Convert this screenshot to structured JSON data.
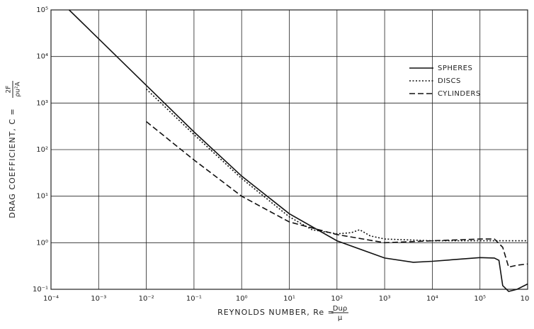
{
  "chart_data": {
    "type": "line",
    "ylabel": "DRAG COEFFICIENT, C =",
    "ylabel_fraction": {
      "numerator": "2F",
      "denominator": "ρu²A"
    },
    "xlabel": "REYNOLDS NUMBER, Re =",
    "xlabel_fraction": {
      "numerator": "Duρ",
      "denominator": "μ"
    },
    "xscale": "log",
    "yscale": "log",
    "grid": true,
    "legend": "upper right",
    "xlim": [
      0.0001,
      1000000
    ],
    "ylim": [
      0.1,
      100000
    ],
    "xticks": [
      {
        "value": 0.0001,
        "label": "10⁻⁴"
      },
      {
        "value": 0.001,
        "label": "10⁻³"
      },
      {
        "value": 0.01,
        "label": "10⁻²"
      },
      {
        "value": 0.1,
        "label": "10⁻¹"
      },
      {
        "value": 1,
        "label": "10⁰"
      },
      {
        "value": 10,
        "label": "10¹"
      },
      {
        "value": 100,
        "label": "10²"
      },
      {
        "value": 1000,
        "label": "10³"
      },
      {
        "value": 10000,
        "label": "10⁴"
      },
      {
        "value": 100000,
        "label": "10⁵"
      },
      {
        "value": 1000000,
        "label": "10"
      }
    ],
    "yticks": [
      {
        "value": 0.1,
        "label": "10⁻¹"
      },
      {
        "value": 1,
        "label": "10⁰"
      },
      {
        "value": 10,
        "label": "10¹"
      },
      {
        "value": 100,
        "label": "10²"
      },
      {
        "value": 1000,
        "label": "10³"
      },
      {
        "value": 10000,
        "label": "10⁴"
      },
      {
        "value": 100000,
        "label": "10⁵"
      }
    ],
    "series": [
      {
        "name": "SPHERES",
        "color": "#111111",
        "line_style": "solid",
        "x": [
          0.00024,
          0.001,
          0.01,
          0.1,
          1,
          10,
          100,
          1000,
          4000,
          10000,
          100000,
          200000,
          250000,
          300000,
          400000,
          600000,
          1000000
        ],
        "values": [
          100000,
          24000,
          2400,
          240,
          27,
          4.2,
          1.1,
          0.47,
          0.38,
          0.4,
          0.48,
          0.47,
          0.42,
          0.12,
          0.09,
          0.1,
          0.13
        ]
      },
      {
        "name": "DISCS",
        "color": "#111111",
        "line_style": "dotted",
        "x": [
          0.01,
          0.1,
          1,
          10,
          30,
          100,
          200,
          300,
          500,
          1000,
          10000,
          100000,
          1000000
        ],
        "values": [
          2000,
          210,
          24,
          3.6,
          1.9,
          1.55,
          1.65,
          1.9,
          1.4,
          1.2,
          1.1,
          1.1,
          1.1
        ]
      },
      {
        "name": "CYLINDERS",
        "color": "#111111",
        "line_style": "dashed",
        "x": [
          0.01,
          0.1,
          1,
          10,
          100,
          1000,
          10000,
          100000,
          200000,
          300000,
          400000,
          600000,
          1000000
        ],
        "values": [
          400,
          60,
          10,
          2.8,
          1.5,
          1.0,
          1.1,
          1.2,
          1.2,
          0.8,
          0.3,
          0.33,
          0.35
        ]
      }
    ]
  }
}
